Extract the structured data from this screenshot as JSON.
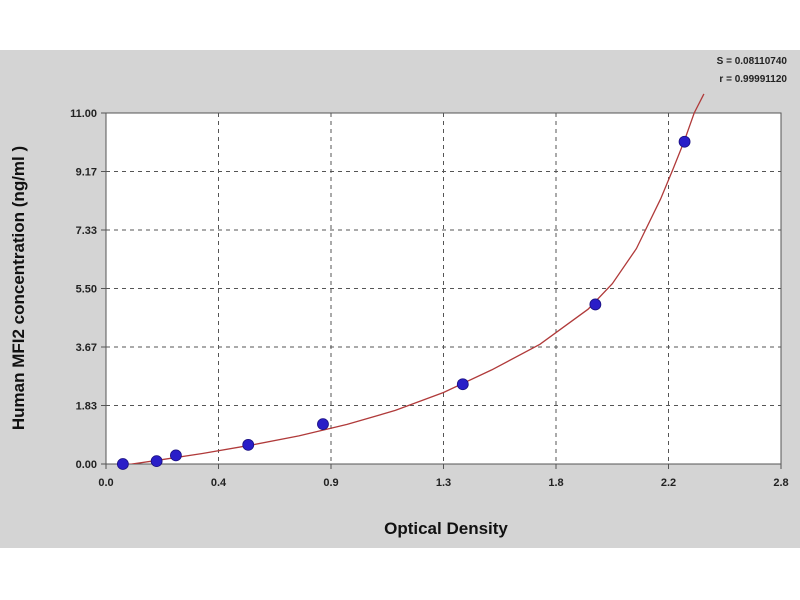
{
  "chart_data": {
    "type": "scatter",
    "xlabel": "Optical Density",
    "ylabel": "Human MFI2 concentration (ng/ml )",
    "xlim": [
      0,
      2.8
    ],
    "ylim": [
      0,
      11
    ],
    "x_ticks": [
      "0.0",
      "0.4",
      "0.9",
      "1.3",
      "1.8",
      "2.2",
      "2.8"
    ],
    "y_ticks": [
      "0.00",
      "1.83",
      "3.67",
      "5.50",
      "7.33",
      "9.17",
      "11.00"
    ],
    "grid": true,
    "stats": [
      "S = 0.08110740",
      "r = 0.99991120"
    ],
    "series": [
      {
        "x": [
          0.07,
          0.21,
          0.29,
          0.59,
          0.9,
          1.48,
          2.03,
          2.4
        ],
        "y": [
          0.0,
          0.09,
          0.27,
          0.6,
          1.25,
          2.5,
          5.0,
          10.1
        ],
        "marker_color": "#2a1ec8"
      }
    ],
    "fit_curve": {
      "x": [
        0.0,
        0.2,
        0.4,
        0.6,
        0.8,
        1.0,
        1.2,
        1.4,
        1.6,
        1.8,
        2.0,
        2.1,
        2.2,
        2.3,
        2.35,
        2.4,
        2.44,
        2.48
      ],
      "y": [
        -0.12,
        0.1,
        0.33,
        0.59,
        0.88,
        1.24,
        1.68,
        2.24,
        2.95,
        3.75,
        4.85,
        5.65,
        6.75,
        8.3,
        9.2,
        10.15,
        11.0,
        11.6
      ],
      "color": "#b03a3a"
    },
    "plot_background": "#ffffff",
    "panel_background": "#d4d4d4"
  }
}
